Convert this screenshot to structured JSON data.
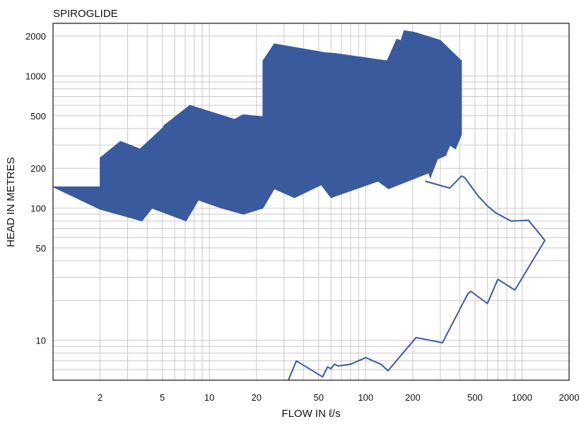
{
  "chart_data": {
    "type": "area",
    "title": "SPIROGLIDE",
    "xlabel": "FLOW IN ℓ/s",
    "ylabel": "HEAD IN METRES",
    "x_scale": "log",
    "y_scale": "log",
    "xlim": [
      1,
      2000
    ],
    "ylim": [
      5,
      2500
    ],
    "grid": true,
    "x_ticks": [
      2,
      5,
      10,
      20,
      50,
      100,
      200,
      500,
      1000,
      2000
    ],
    "y_ticks": [
      10,
      50,
      100,
      200,
      500,
      1000,
      2000
    ],
    "colors": {
      "fill": "#3a5a9e",
      "outline": "#3a5a9e",
      "grid": "#c8c8c8"
    },
    "series": [
      {
        "kind": "filled-envelope",
        "points": [
          [
            1,
            145
          ],
          [
            2,
            145
          ],
          [
            2,
            240
          ],
          [
            2.7,
            320
          ],
          [
            3.6,
            280
          ],
          [
            5.1,
            410
          ],
          [
            5.1,
            420
          ],
          [
            7.5,
            600
          ],
          [
            14.5,
            470
          ],
          [
            16.5,
            510
          ],
          [
            22,
            490
          ],
          [
            22,
            1300
          ],
          [
            26,
            1750
          ],
          [
            55,
            1500
          ],
          [
            64,
            1480
          ],
          [
            137,
            1300
          ],
          [
            158,
            1900
          ],
          [
            168,
            1850
          ],
          [
            176,
            2200
          ],
          [
            205,
            2140
          ],
          [
            300,
            1860
          ],
          [
            410,
            1300
          ],
          [
            410,
            360
          ],
          [
            375,
            280
          ],
          [
            346,
            300
          ],
          [
            325,
            250
          ],
          [
            288,
            235
          ],
          [
            259,
            170
          ],
          [
            253,
            185
          ],
          [
            140,
            140
          ],
          [
            120,
            160
          ],
          [
            60,
            120
          ],
          [
            52,
            150
          ],
          [
            35,
            120
          ],
          [
            26,
            140
          ],
          [
            22,
            100
          ],
          [
            16.5,
            90
          ],
          [
            12,
            100
          ],
          [
            8.5,
            115
          ],
          [
            7.1,
            80
          ],
          [
            4.3,
            100
          ],
          [
            3.7,
            80
          ],
          [
            2,
            98
          ]
        ]
      },
      {
        "kind": "outline",
        "points": [
          [
            32,
            5
          ],
          [
            36,
            7
          ],
          [
            53,
            5.3
          ],
          [
            57,
            6.3
          ],
          [
            60,
            6.1
          ],
          [
            63,
            6.6
          ],
          [
            67,
            6.4
          ],
          [
            80,
            6.6
          ],
          [
            100,
            7.4
          ],
          [
            125,
            6.6
          ],
          [
            139,
            5.9
          ],
          [
            210,
            10.5
          ],
          [
            310,
            9.6
          ],
          [
            450,
            22.5
          ],
          [
            470,
            23.5
          ],
          [
            600,
            19
          ],
          [
            700,
            29
          ],
          [
            900,
            24
          ],
          [
            1400,
            57
          ],
          [
            1100,
            81
          ],
          [
            850,
            80
          ],
          [
            680,
            92
          ],
          [
            600,
            104
          ],
          [
            520,
            125
          ],
          [
            430,
            170
          ],
          [
            410,
            175
          ],
          [
            345,
            142
          ],
          [
            240,
            160
          ]
        ]
      }
    ]
  }
}
